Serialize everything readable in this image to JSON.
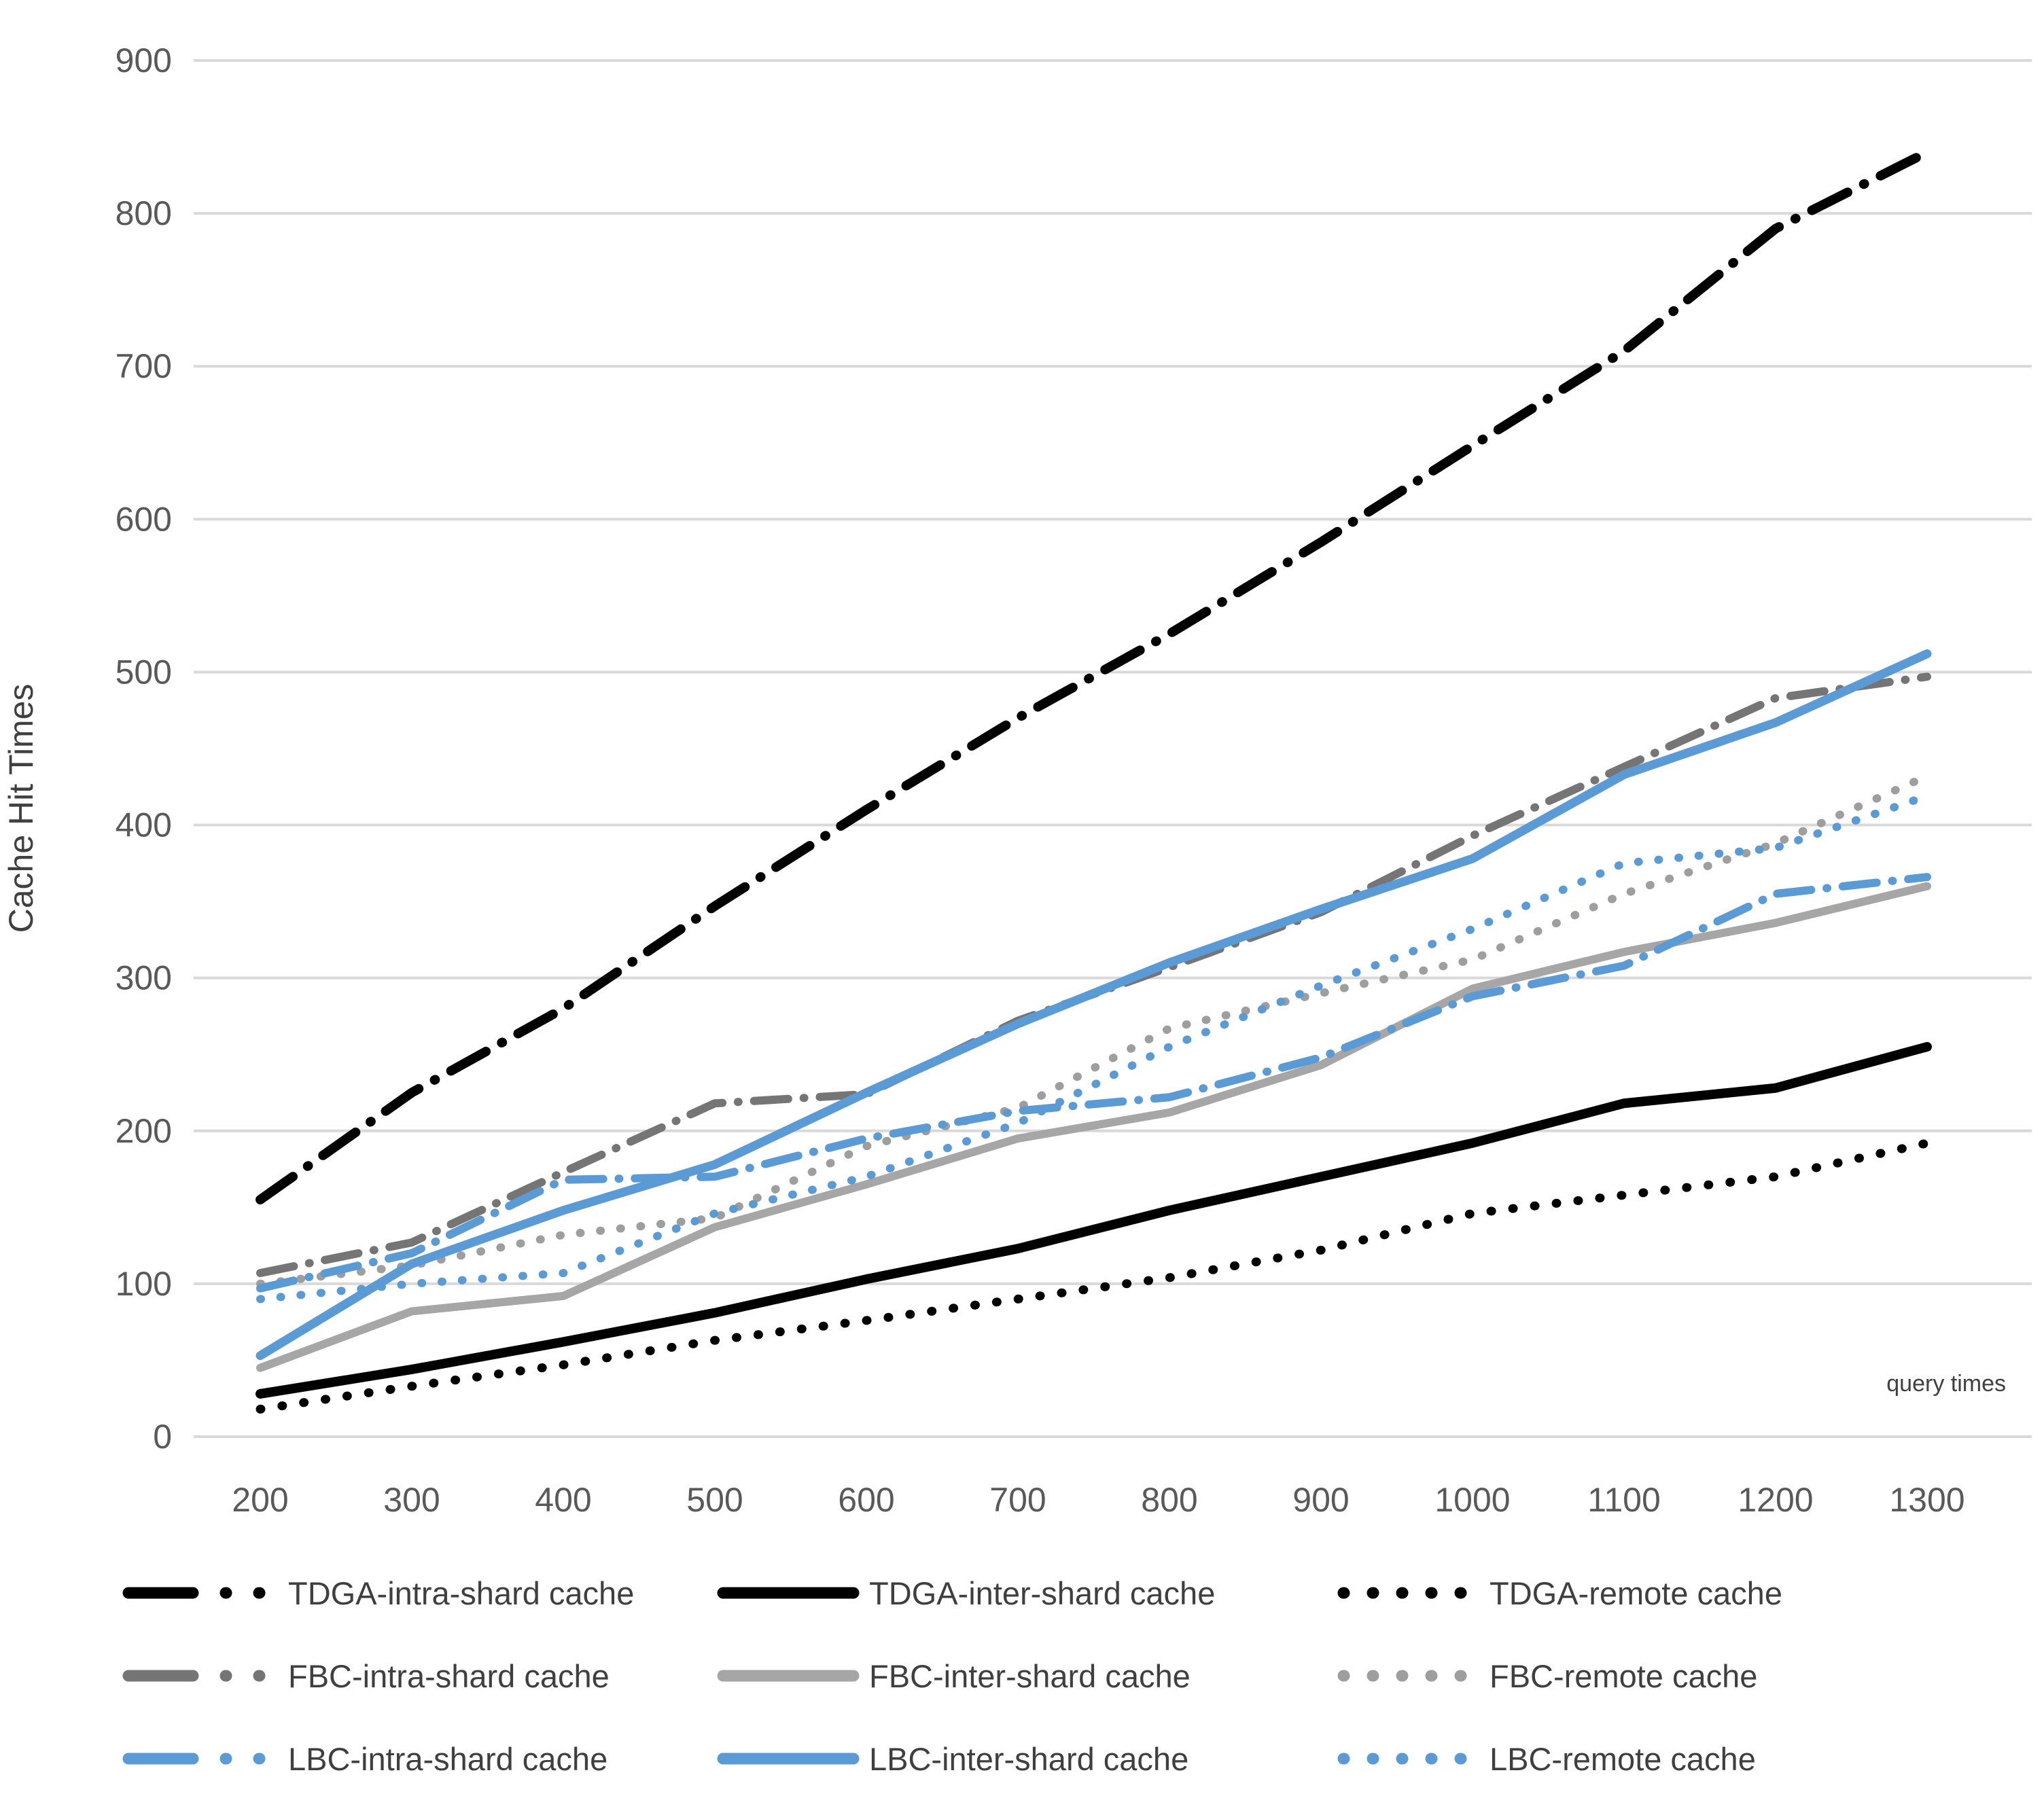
{
  "chart_data": {
    "type": "line",
    "title": "",
    "xlabel": "query times",
    "ylabel": "Cache Hit Times",
    "x": [
      200,
      300,
      400,
      500,
      600,
      700,
      800,
      900,
      1000,
      1100,
      1200,
      1300
    ],
    "x_tick_labels": [
      "200",
      "300",
      "400",
      "500",
      "600",
      "700",
      "800",
      "900",
      "1000",
      "1100",
      "1200",
      "1300"
    ],
    "y_tick_labels": [
      "0",
      "100",
      "200",
      "300",
      "400",
      "500",
      "600",
      "700",
      "800",
      "900"
    ],
    "ylim": [
      0,
      900
    ],
    "ytick_step": 100,
    "grid": "horizontal-only",
    "gridline_color": "#d9d9d9",
    "tick_label_color": "#595959",
    "axis_title_color": "#404040",
    "legend_position": "bottom-3-rows",
    "series": [
      {
        "name": "TDGA-intra-shard cache",
        "color": "#000000",
        "style": "dashdot",
        "width": 14,
        "values": [
          155,
          225,
          280,
          347,
          410,
          470,
          525,
          585,
          648,
          710,
          790,
          840
        ]
      },
      {
        "name": "TDGA-inter-shard cache",
        "color": "#000000",
        "style": "solid",
        "width": 14,
        "values": [
          28,
          44,
          62,
          81,
          103,
          123,
          148,
          170,
          192,
          218,
          228,
          255
        ]
      },
      {
        "name": "TDGA-remote cache",
        "color": "#000000",
        "style": "dotted",
        "width": 13,
        "values": [
          18,
          33,
          47,
          63,
          76,
          90,
          104,
          122,
          146,
          158,
          170,
          192
        ]
      },
      {
        "name": "FBC-intra-shard cache",
        "color": "#757575",
        "style": "dashdot",
        "width": 12,
        "values": [
          107,
          127,
          173,
          218,
          224,
          272,
          307,
          343,
          393,
          438,
          483,
          497
        ]
      },
      {
        "name": "FBC-inter-shard cache",
        "color": "#a6a6a6",
        "style": "solid",
        "width": 12,
        "values": [
          45,
          82,
          92,
          137,
          165,
          195,
          212,
          243,
          293,
          317,
          336,
          360
        ]
      },
      {
        "name": "FBC-remote cache",
        "color": "#9e9e9e",
        "style": "dotted",
        "width": 12,
        "values": [
          100,
          112,
          132,
          143,
          190,
          215,
          267,
          290,
          312,
          355,
          388,
          432
        ]
      },
      {
        "name": "LBC-intra-shard cache",
        "color": "#5b9bd5",
        "style": "dashdot",
        "width": 12,
        "values": [
          97,
          120,
          168,
          170,
          195,
          213,
          222,
          248,
          288,
          308,
          355,
          366
        ]
      },
      {
        "name": "LBC-inter-shard cache",
        "color": "#5b9bd5",
        "style": "solid",
        "width": 13,
        "values": [
          53,
          113,
          148,
          178,
          225,
          270,
          310,
          345,
          378,
          433,
          467,
          512
        ]
      },
      {
        "name": "LBC-remote cache",
        "color": "#5b9bd5",
        "style": "dotted",
        "width": 12,
        "values": [
          90,
          100,
          107,
          146,
          170,
          205,
          255,
          295,
          332,
          375,
          385,
          419
        ]
      }
    ]
  }
}
